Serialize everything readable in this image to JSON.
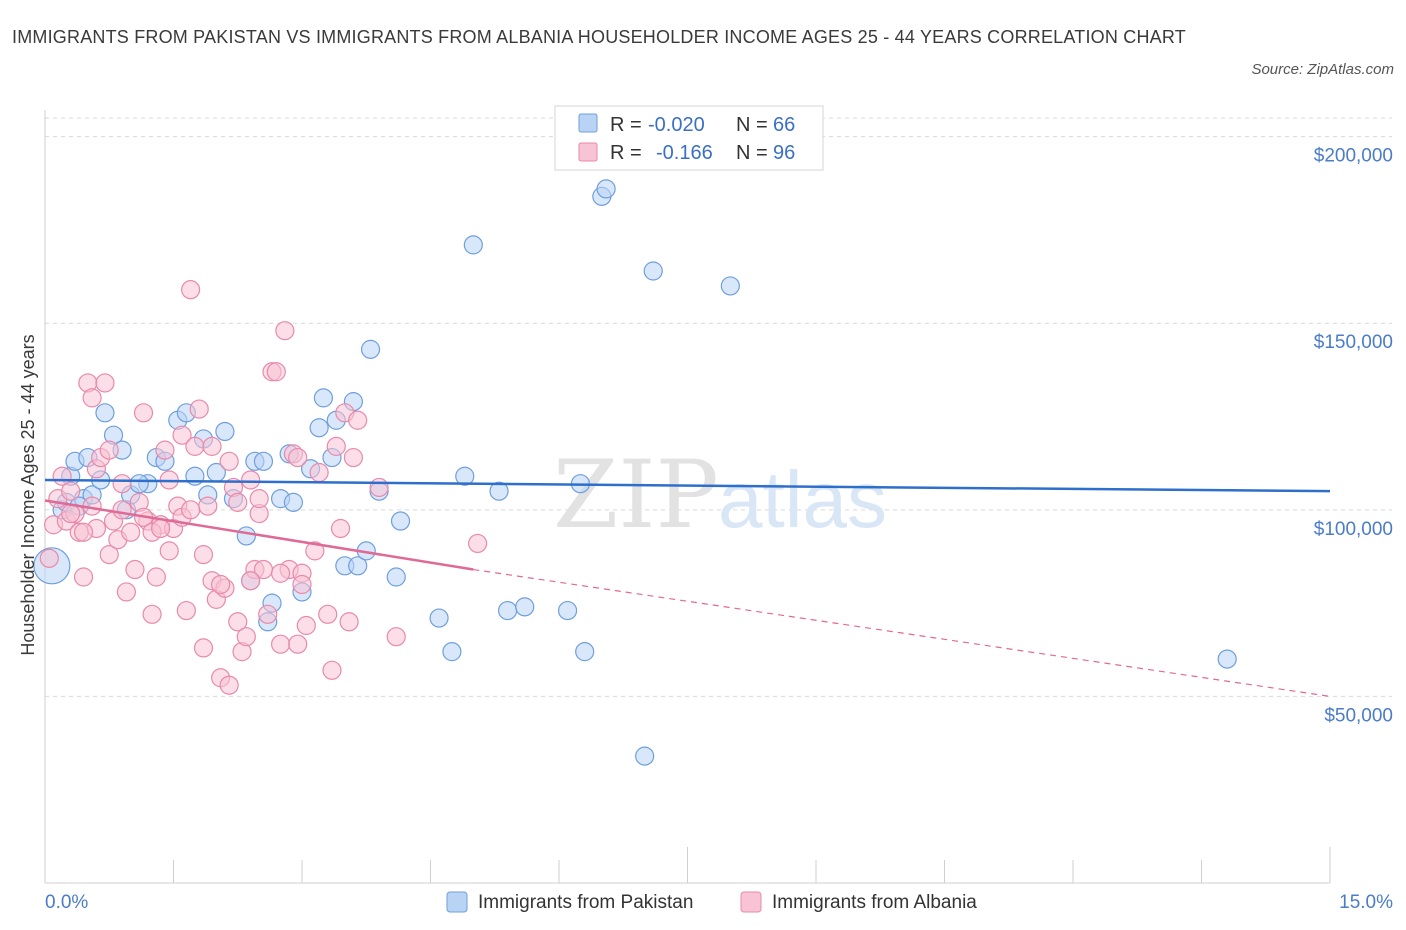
{
  "title": "IMMIGRANTS FROM PAKISTAN VS IMMIGRANTS FROM ALBANIA HOUSEHOLDER INCOME AGES 25 - 44 YEARS CORRELATION CHART",
  "source": "Source: ZipAtlas.com",
  "watermark": {
    "zip": "ZIP",
    "atlas": "atlas"
  },
  "colors": {
    "pakistan_fill": "#b9d3f5",
    "pakistan_stroke": "#6f9fdc",
    "pakistan_line": "#2f6fcc",
    "albania_fill": "#f8c3d4",
    "albania_stroke": "#e88aab",
    "albania_line": "#e06a96",
    "tick_label": "#4a7cc9",
    "grid": "#d9d9d9"
  },
  "legend": {
    "rows": [
      {
        "r_label": "R =",
        "r_value": "-0.020",
        "n_label": "N =",
        "n_value": "66"
      },
      {
        "r_label": "R =",
        "r_value": "-0.166",
        "n_label": "N =",
        "n_value": "96"
      }
    ]
  },
  "chart_data": {
    "type": "scatter",
    "ylabel": "Householder Income Ages 25 - 44 years",
    "xlabel": "",
    "x_tick_labels": [
      "0.0%",
      "15.0%"
    ],
    "y_tick_labels": [
      "$50,000",
      "$100,000",
      "$150,000",
      "$200,000"
    ],
    "y_ticks": [
      50000,
      100000,
      150000,
      200000
    ],
    "xlim": [
      0,
      15
    ],
    "ylim": [
      0,
      205000
    ],
    "grid": true,
    "legend_position": "top-center",
    "series": [
      {
        "name": "Immigrants from Pakistan",
        "r": -0.02,
        "n": 66,
        "trend": {
          "x": [
            0,
            15
          ],
          "y": [
            108000,
            105000
          ]
        },
        "points": [
          [
            0.08,
            85000
          ],
          [
            0.2,
            100000
          ],
          [
            0.25,
            102000
          ],
          [
            0.3,
            109000
          ],
          [
            0.35,
            113000
          ],
          [
            0.45,
            103000
          ],
          [
            0.5,
            114000
          ],
          [
            0.55,
            104000
          ],
          [
            0.65,
            108000
          ],
          [
            0.7,
            126000
          ],
          [
            0.8,
            120000
          ],
          [
            0.9,
            116000
          ],
          [
            0.95,
            100000
          ],
          [
            1.0,
            104000
          ],
          [
            1.2,
            107000
          ],
          [
            1.3,
            114000
          ],
          [
            1.4,
            113000
          ],
          [
            1.55,
            124000
          ],
          [
            1.65,
            126000
          ],
          [
            1.75,
            109000
          ],
          [
            1.85,
            119000
          ],
          [
            1.9,
            104000
          ],
          [
            2.0,
            110000
          ],
          [
            2.1,
            121000
          ],
          [
            2.2,
            103000
          ],
          [
            2.35,
            93000
          ],
          [
            2.45,
            113000
          ],
          [
            2.55,
            113000
          ],
          [
            2.6,
            70000
          ],
          [
            2.65,
            75000
          ],
          [
            2.75,
            103000
          ],
          [
            2.85,
            115000
          ],
          [
            2.9,
            102000
          ],
          [
            3.0,
            78000
          ],
          [
            3.1,
            111000
          ],
          [
            3.2,
            122000
          ],
          [
            3.25,
            130000
          ],
          [
            3.35,
            114000
          ],
          [
            3.4,
            124000
          ],
          [
            3.5,
            85000
          ],
          [
            3.6,
            129000
          ],
          [
            3.65,
            85000
          ],
          [
            3.75,
            89000
          ],
          [
            3.8,
            143000
          ],
          [
            3.9,
            105000
          ],
          [
            4.1,
            82000
          ],
          [
            4.15,
            97000
          ],
          [
            4.6,
            71000
          ],
          [
            4.75,
            62000
          ],
          [
            4.9,
            109000
          ],
          [
            5.0,
            171000
          ],
          [
            5.3,
            105000
          ],
          [
            5.4,
            73000
          ],
          [
            5.6,
            74000
          ],
          [
            6.1,
            73000
          ],
          [
            6.25,
            107000
          ],
          [
            6.3,
            62000
          ],
          [
            6.5,
            184000
          ],
          [
            6.55,
            186000
          ],
          [
            7.0,
            34000
          ],
          [
            7.1,
            164000
          ],
          [
            8.0,
            160000
          ],
          [
            13.8,
            60000
          ],
          [
            0.4,
            101000
          ],
          [
            1.1,
            107000
          ],
          [
            2.4,
            81000
          ]
        ]
      },
      {
        "name": "Immigrants from Albania",
        "r": -0.166,
        "n": 96,
        "trend": {
          "x": [
            0,
            5
          ],
          "y": [
            102500,
            84000
          ]
        },
        "trend_dashed": {
          "x": [
            5,
            15
          ],
          "y": [
            84000,
            50000
          ]
        },
        "points": [
          [
            0.05,
            87000
          ],
          [
            0.1,
            96000
          ],
          [
            0.15,
            103000
          ],
          [
            0.2,
            109000
          ],
          [
            0.25,
            97000
          ],
          [
            0.3,
            105000
          ],
          [
            0.35,
            99000
          ],
          [
            0.4,
            94000
          ],
          [
            0.45,
            82000
          ],
          [
            0.5,
            134000
          ],
          [
            0.55,
            101000
          ],
          [
            0.6,
            111000
          ],
          [
            0.65,
            114000
          ],
          [
            0.7,
            134000
          ],
          [
            0.75,
            88000
          ],
          [
            0.8,
            97000
          ],
          [
            0.85,
            92000
          ],
          [
            0.9,
            107000
          ],
          [
            0.95,
            78000
          ],
          [
            1.0,
            94000
          ],
          [
            1.05,
            84000
          ],
          [
            1.1,
            102000
          ],
          [
            1.15,
            126000
          ],
          [
            1.2,
            97000
          ],
          [
            1.25,
            72000
          ],
          [
            1.3,
            82000
          ],
          [
            1.35,
            96000
          ],
          [
            1.4,
            116000
          ],
          [
            1.45,
            108000
          ],
          [
            1.5,
            95000
          ],
          [
            1.55,
            101000
          ],
          [
            1.6,
            120000
          ],
          [
            1.65,
            73000
          ],
          [
            1.7,
            159000
          ],
          [
            1.75,
            117000
          ],
          [
            1.8,
            127000
          ],
          [
            1.85,
            88000
          ],
          [
            1.9,
            101000
          ],
          [
            1.95,
            81000
          ],
          [
            2.0,
            76000
          ],
          [
            2.05,
            55000
          ],
          [
            2.1,
            79000
          ],
          [
            2.15,
            113000
          ],
          [
            2.2,
            106000
          ],
          [
            2.25,
            70000
          ],
          [
            2.3,
            62000
          ],
          [
            2.35,
            66000
          ],
          [
            2.4,
            108000
          ],
          [
            2.45,
            84000
          ],
          [
            2.5,
            99000
          ],
          [
            2.55,
            84000
          ],
          [
            2.6,
            72000
          ],
          [
            2.65,
            137000
          ],
          [
            2.7,
            137000
          ],
          [
            2.75,
            64000
          ],
          [
            2.8,
            148000
          ],
          [
            2.85,
            84000
          ],
          [
            2.9,
            115000
          ],
          [
            2.95,
            64000
          ],
          [
            3.0,
            83000
          ],
          [
            3.05,
            69000
          ],
          [
            3.15,
            89000
          ],
          [
            3.3,
            72000
          ],
          [
            3.35,
            57000
          ],
          [
            3.4,
            117000
          ],
          [
            3.45,
            95000
          ],
          [
            3.5,
            126000
          ],
          [
            3.55,
            70000
          ],
          [
            3.6,
            114000
          ],
          [
            3.9,
            106000
          ],
          [
            4.1,
            66000
          ],
          [
            5.05,
            91000
          ],
          [
            0.3,
            99000
          ],
          [
            0.6,
            95000
          ],
          [
            0.9,
            100000
          ],
          [
            1.15,
            98000
          ],
          [
            1.25,
            94000
          ],
          [
            1.35,
            95000
          ],
          [
            1.6,
            98000
          ],
          [
            1.7,
            100000
          ],
          [
            1.95,
            117000
          ],
          [
            2.05,
            80000
          ],
          [
            2.25,
            102000
          ],
          [
            2.4,
            81000
          ],
          [
            2.5,
            103000
          ],
          [
            2.75,
            83000
          ],
          [
            3.0,
            80000
          ],
          [
            0.45,
            94000
          ],
          [
            0.75,
            116000
          ],
          [
            0.55,
            130000
          ],
          [
            1.45,
            89000
          ],
          [
            2.15,
            53000
          ],
          [
            2.95,
            114000
          ],
          [
            3.2,
            110000
          ],
          [
            3.65,
            124000
          ],
          [
            1.85,
            63000
          ]
        ]
      }
    ]
  }
}
